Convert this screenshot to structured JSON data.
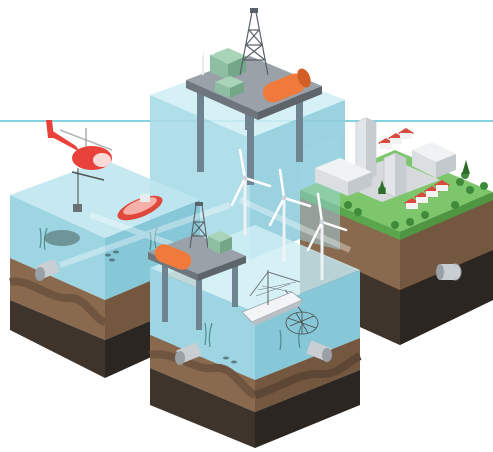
{
  "colors": {
    "sea_line": "#5ec4d4",
    "water_top": "#bfe6ef",
    "water_front": "#9ed5e3",
    "water_side": "#86c7d8",
    "soil_top": "#8a6a4f",
    "soil_mid": "#6f5440",
    "soil_dark": "#3f342c",
    "rock_dark": "#2b2622",
    "grass": "#7dc66b",
    "grass_dark": "#5aa64c",
    "platform_grey": "#8a9097",
    "tank_orange": "#f07a3c",
    "module_green": "#8fbfa2",
    "helicopter_red": "#e8423b",
    "boat_red": "#e0483c",
    "turbine_white": "#f4f7f8",
    "pipe_grey": "#c9ced2",
    "building_grey": "#e3e6e8",
    "roof_red": "#d8493f"
  },
  "icons": [
    "helicopter-icon",
    "oil-rig-icon",
    "wind-turbine-icon",
    "rescue-boat-icon",
    "fishing-vessel-icon",
    "pipeline-icon",
    "city-buildings-icon",
    "tree-icon"
  ]
}
